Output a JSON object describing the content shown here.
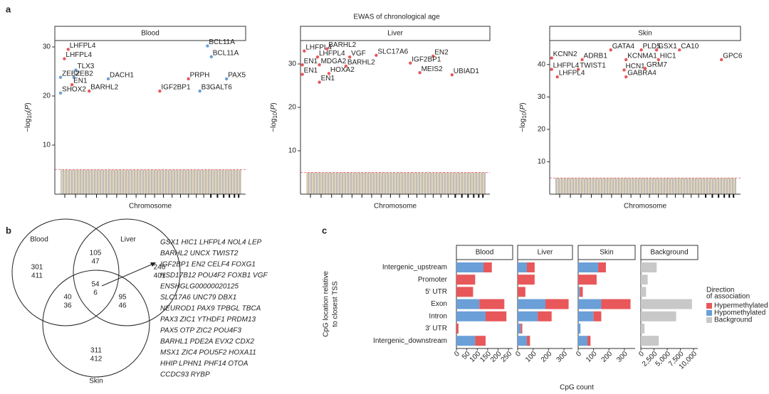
{
  "panel_labels": [
    "a",
    "b",
    "c"
  ],
  "figure_title": "EWAS of chronological age",
  "manhattan": [
    {
      "type": "scatter",
      "title": "Blood",
      "xlabel": "Chromosome",
      "ylabel_parts": [
        "−log",
        "10",
        "(",
        "P",
        ")"
      ],
      "xlim": [
        0,
        1
      ],
      "ylim": [
        0,
        31.3
      ],
      "yticks": [
        10,
        20,
        30
      ],
      "threshold": 5,
      "points": [
        {
          "label": "LHFPL4",
          "x": 0.07,
          "y": 29.5,
          "color": "#e8575a"
        },
        {
          "label": "LHFPL4",
          "x": 0.05,
          "y": 27.6,
          "color": "#e8575a"
        },
        {
          "label": "TLX3",
          "x": 0.11,
          "y": 25.3,
          "color": "#6a9fd8"
        },
        {
          "label": "ZEB2",
          "x": 0.03,
          "y": 23.8,
          "color": "#6a9fd8"
        },
        {
          "label": "ZEB2",
          "x": 0.1,
          "y": 23.8,
          "color": "#6a9fd8"
        },
        {
          "label": "EN1",
          "x": 0.09,
          "y": 22.3,
          "color": "#e8575a"
        },
        {
          "label": "SHOX2",
          "x": 0.03,
          "y": 20.6,
          "color": "#6a9fd8"
        },
        {
          "label": "BARHL2",
          "x": 0.18,
          "y": 21,
          "color": "#e8575a"
        },
        {
          "label": "DACH1",
          "x": 0.28,
          "y": 23.5,
          "color": "#6a9fd8"
        },
        {
          "label": "BCL11A",
          "x": 0.8,
          "y": 30.2,
          "color": "#6a9fd8"
        },
        {
          "label": "BCL11A",
          "x": 0.82,
          "y": 28,
          "color": "#6a9fd8"
        },
        {
          "label": "PRPH",
          "x": 0.7,
          "y": 23.5,
          "color": "#e8575a"
        },
        {
          "label": "IGF2BP1",
          "x": 0.55,
          "y": 21,
          "color": "#e8575a"
        },
        {
          "label": "B3GALT6",
          "x": 0.76,
          "y": 21,
          "color": "#6a9fd8"
        },
        {
          "label": "PAX5",
          "x": 0.9,
          "y": 23.5,
          "color": "#6a9fd8"
        }
      ]
    },
    {
      "type": "scatter",
      "title": "Liver",
      "xlabel": "Chromosome",
      "ylabel_parts": [
        "−log",
        "10",
        "(",
        "P",
        ")"
      ],
      "xlim": [
        0,
        1
      ],
      "ylim": [
        0,
        35.4
      ],
      "yticks": [
        10,
        20,
        30
      ],
      "threshold": 5,
      "points": [
        {
          "label": "LHFPL4",
          "x": 0.02,
          "y": 33,
          "color": "#e8575a"
        },
        {
          "label": "BARHL2",
          "x": 0.14,
          "y": 33.5,
          "color": "#e8575a"
        },
        {
          "label": "LHFPL4",
          "x": 0.09,
          "y": 31.6,
          "color": "#e8575a"
        },
        {
          "label": "VGF",
          "x": 0.26,
          "y": 31.6,
          "color": "#e8575a"
        },
        {
          "label": "SLC17A6",
          "x": 0.4,
          "y": 32,
          "color": "#e8575a"
        },
        {
          "label": "EN2",
          "x": 0.7,
          "y": 31.8,
          "color": "#e8575a"
        },
        {
          "label": "EN1",
          "x": 0.01,
          "y": 29.8,
          "color": "#e8575a"
        },
        {
          "label": "MDGA2",
          "x": 0.1,
          "y": 29.8,
          "color": "#e8575a"
        },
        {
          "label": "IGF2BP1",
          "x": 0.58,
          "y": 30.2,
          "color": "#e8575a"
        },
        {
          "label": "BARHL2",
          "x": 0.24,
          "y": 29.5,
          "color": "#e8575a"
        },
        {
          "label": "EN1",
          "x": 0.01,
          "y": 27.6,
          "color": "#e8575a"
        },
        {
          "label": "HOXA2",
          "x": 0.15,
          "y": 27.8,
          "color": "#e8575a"
        },
        {
          "label": "EN1",
          "x": 0.1,
          "y": 25.8,
          "color": "#e8575a"
        },
        {
          "label": "MEIS2",
          "x": 0.63,
          "y": 28,
          "color": "#e8575a"
        },
        {
          "label": "UBIAD1",
          "x": 0.8,
          "y": 27.5,
          "color": "#e8575a"
        }
      ]
    },
    {
      "type": "scatter",
      "title": "Skin",
      "xlabel": "Chromosome",
      "ylabel_parts": [
        "−log",
        "10",
        "(",
        "P",
        ")"
      ],
      "xlim": [
        0,
        1
      ],
      "ylim": [
        0,
        47.4
      ],
      "yticks": [
        10,
        20,
        30,
        40
      ],
      "threshold": 5,
      "points": [
        {
          "label": "KCNN2",
          "x": 0.01,
          "y": 42,
          "color": "#e8575a"
        },
        {
          "label": "GATA4",
          "x": 0.32,
          "y": 44.5,
          "color": "#e8575a"
        },
        {
          "label": "PLD5",
          "x": 0.48,
          "y": 44.5,
          "color": "#e8575a"
        },
        {
          "label": "GSX1",
          "x": 0.56,
          "y": 44.5,
          "color": "#e8575a"
        },
        {
          "label": "CA10",
          "x": 0.68,
          "y": 44.5,
          "color": "#e8575a"
        },
        {
          "label": "ADRB1",
          "x": 0.17,
          "y": 41.5,
          "color": "#e8575a"
        },
        {
          "label": "KCNMA1",
          "x": 0.4,
          "y": 41.5,
          "color": "#e8575a"
        },
        {
          "label": "HIC1",
          "x": 0.57,
          "y": 41.5,
          "color": "#e8575a"
        },
        {
          "label": "GPC6",
          "x": 0.9,
          "y": 41.5,
          "color": "#e8575a"
        },
        {
          "label": "LHFPL4",
          "x": 0.01,
          "y": 38.5,
          "color": "#e8575a"
        },
        {
          "label": "TWIST1",
          "x": 0.15,
          "y": 38.5,
          "color": "#e8575a"
        },
        {
          "label": "HCN1",
          "x": 0.39,
          "y": 38.3,
          "color": "#e8575a"
        },
        {
          "label": "GRM7",
          "x": 0.5,
          "y": 38.8,
          "color": "#e8575a"
        },
        {
          "label": "LHFPL4",
          "x": 0.04,
          "y": 36.2,
          "color": "#e8575a"
        },
        {
          "label": "GABRA4",
          "x": 0.4,
          "y": 36.2,
          "color": "#e8575a"
        }
      ]
    }
  ],
  "venn": {
    "sets": [
      "Blood",
      "Liver",
      "Skin"
    ],
    "colors": [
      "#e8575a",
      "#6a9fd8"
    ],
    "regions": [
      {
        "name": "blood_only",
        "values": [
          301,
          411
        ]
      },
      {
        "name": "liver_only",
        "values": [
          246,
          401
        ]
      },
      {
        "name": "skin_only",
        "values": [
          311,
          412
        ]
      },
      {
        "name": "blood_liver",
        "values": [
          105,
          47
        ]
      },
      {
        "name": "blood_skin",
        "values": [
          40,
          36
        ]
      },
      {
        "name": "liver_skin",
        "values": [
          95,
          46
        ]
      },
      {
        "name": "all",
        "values": [
          54,
          6
        ]
      }
    ],
    "gene_lines": [
      {
        "text": "GSX1 HIC1 LHFPL4 NOL4 LEP",
        "color": "#e8575a"
      },
      {
        "text": "BARHL2 UNCX TWIST2",
        "color": "#e8575a"
      },
      {
        "text": "IGF2BP1 EN2 CELF4 FOXG1",
        "color": "#e8575a"
      },
      {
        "text": "HSD17B12 POU4F2 FOXB1 VGF",
        "color": "#e8575a"
      },
      {
        "text": "ENSHGLG00000020125",
        "color": "#e8575a"
      },
      {
        "text": "SLC17A6 UNC79 DBX1",
        "color": "#e8575a"
      },
      {
        "text": "NEUROD1 PAX9 TPBGL TBCA",
        "color": "#e8575a"
      },
      {
        "text": "PAX3 ZIC1 YTHDF1 PRDM13",
        "color": "#e8575a"
      },
      {
        "text": "PAX5 OTP ZIC2 POU4F3",
        "color": "#e8575a"
      },
      {
        "text": "BARHL1 PDE2A EVX2 CDX2",
        "color": "#e8575a"
      },
      {
        "text": "MSX1 ZIC4 POU5F2 HOXA11",
        "color": "#e8575a"
      },
      {
        "text": "HHIP LPHN1 PHF14 OTOA",
        "color": "#6a9fd8"
      },
      {
        "text": "CCDC93 RYBP",
        "color": "#6a9fd8"
      }
    ]
  },
  "chart_data": {
    "type": "bar",
    "orientation": "horizontal",
    "stacked": true,
    "categories": [
      "Intergenic_upstream",
      "Promoter",
      "5′ UTR",
      "Exon",
      "Intron",
      "3′ UTR",
      "Intergenic_downstream"
    ],
    "ylabel": [
      "CpG location relative",
      "to closest TSS"
    ],
    "xlabel": "CpG count",
    "legend_title": [
      "Direction",
      "of association"
    ],
    "facets": [
      {
        "title": "Blood",
        "xlim": [
          0,
          270
        ],
        "xticks": [
          0,
          50,
          100,
          150,
          200,
          250
        ],
        "series": [
          {
            "name": "Hypomethylated",
            "color": "#6a9fd8",
            "values": [
              130,
              0,
              0,
              110,
              140,
              0,
              90
            ]
          },
          {
            "name": "Hypermethylated",
            "color": "#e8575a",
            "values": [
              40,
              90,
              80,
              120,
              100,
              10,
              50
            ]
          }
        ]
      },
      {
        "title": "Liver",
        "xlim": [
          0,
          355
        ],
        "xticks": [
          0,
          100,
          200,
          300
        ],
        "series": [
          {
            "name": "Hypomethylated",
            "color": "#6a9fd8",
            "values": [
              60,
              0,
              0,
              180,
              130,
              20,
              60
            ]
          },
          {
            "name": "Hypermethylated",
            "color": "#e8575a",
            "values": [
              50,
              110,
              50,
              150,
              90,
              10,
              20
            ]
          }
        ]
      },
      {
        "title": "Skin",
        "xlim": [
          0,
          370
        ],
        "xticks": [
          0,
          100,
          200,
          300
        ],
        "series": [
          {
            "name": "Hypomethylated",
            "color": "#6a9fd8",
            "values": [
              130,
              0,
              10,
              150,
              100,
              15,
              60
            ]
          },
          {
            "name": "Hypermethylated",
            "color": "#e8575a",
            "values": [
              50,
              120,
              20,
              190,
              50,
              0,
              20
            ]
          }
        ]
      },
      {
        "title": "Background",
        "xlim": [
          0,
          10800
        ],
        "xticks": [
          0,
          {
            "value": 2500,
            "label": "2,500"
          },
          {
            "value": 5000,
            "label": "5,000"
          },
          {
            "value": 7500,
            "label": "7,500"
          },
          {
            "value": 10000,
            "label": "10,000"
          }
        ],
        "series": [
          {
            "name": "Background",
            "color": "#c8c8c8",
            "values": [
              3000,
              1300,
              1000,
              9700,
              6700,
              700,
              3400
            ]
          }
        ]
      }
    ]
  }
}
